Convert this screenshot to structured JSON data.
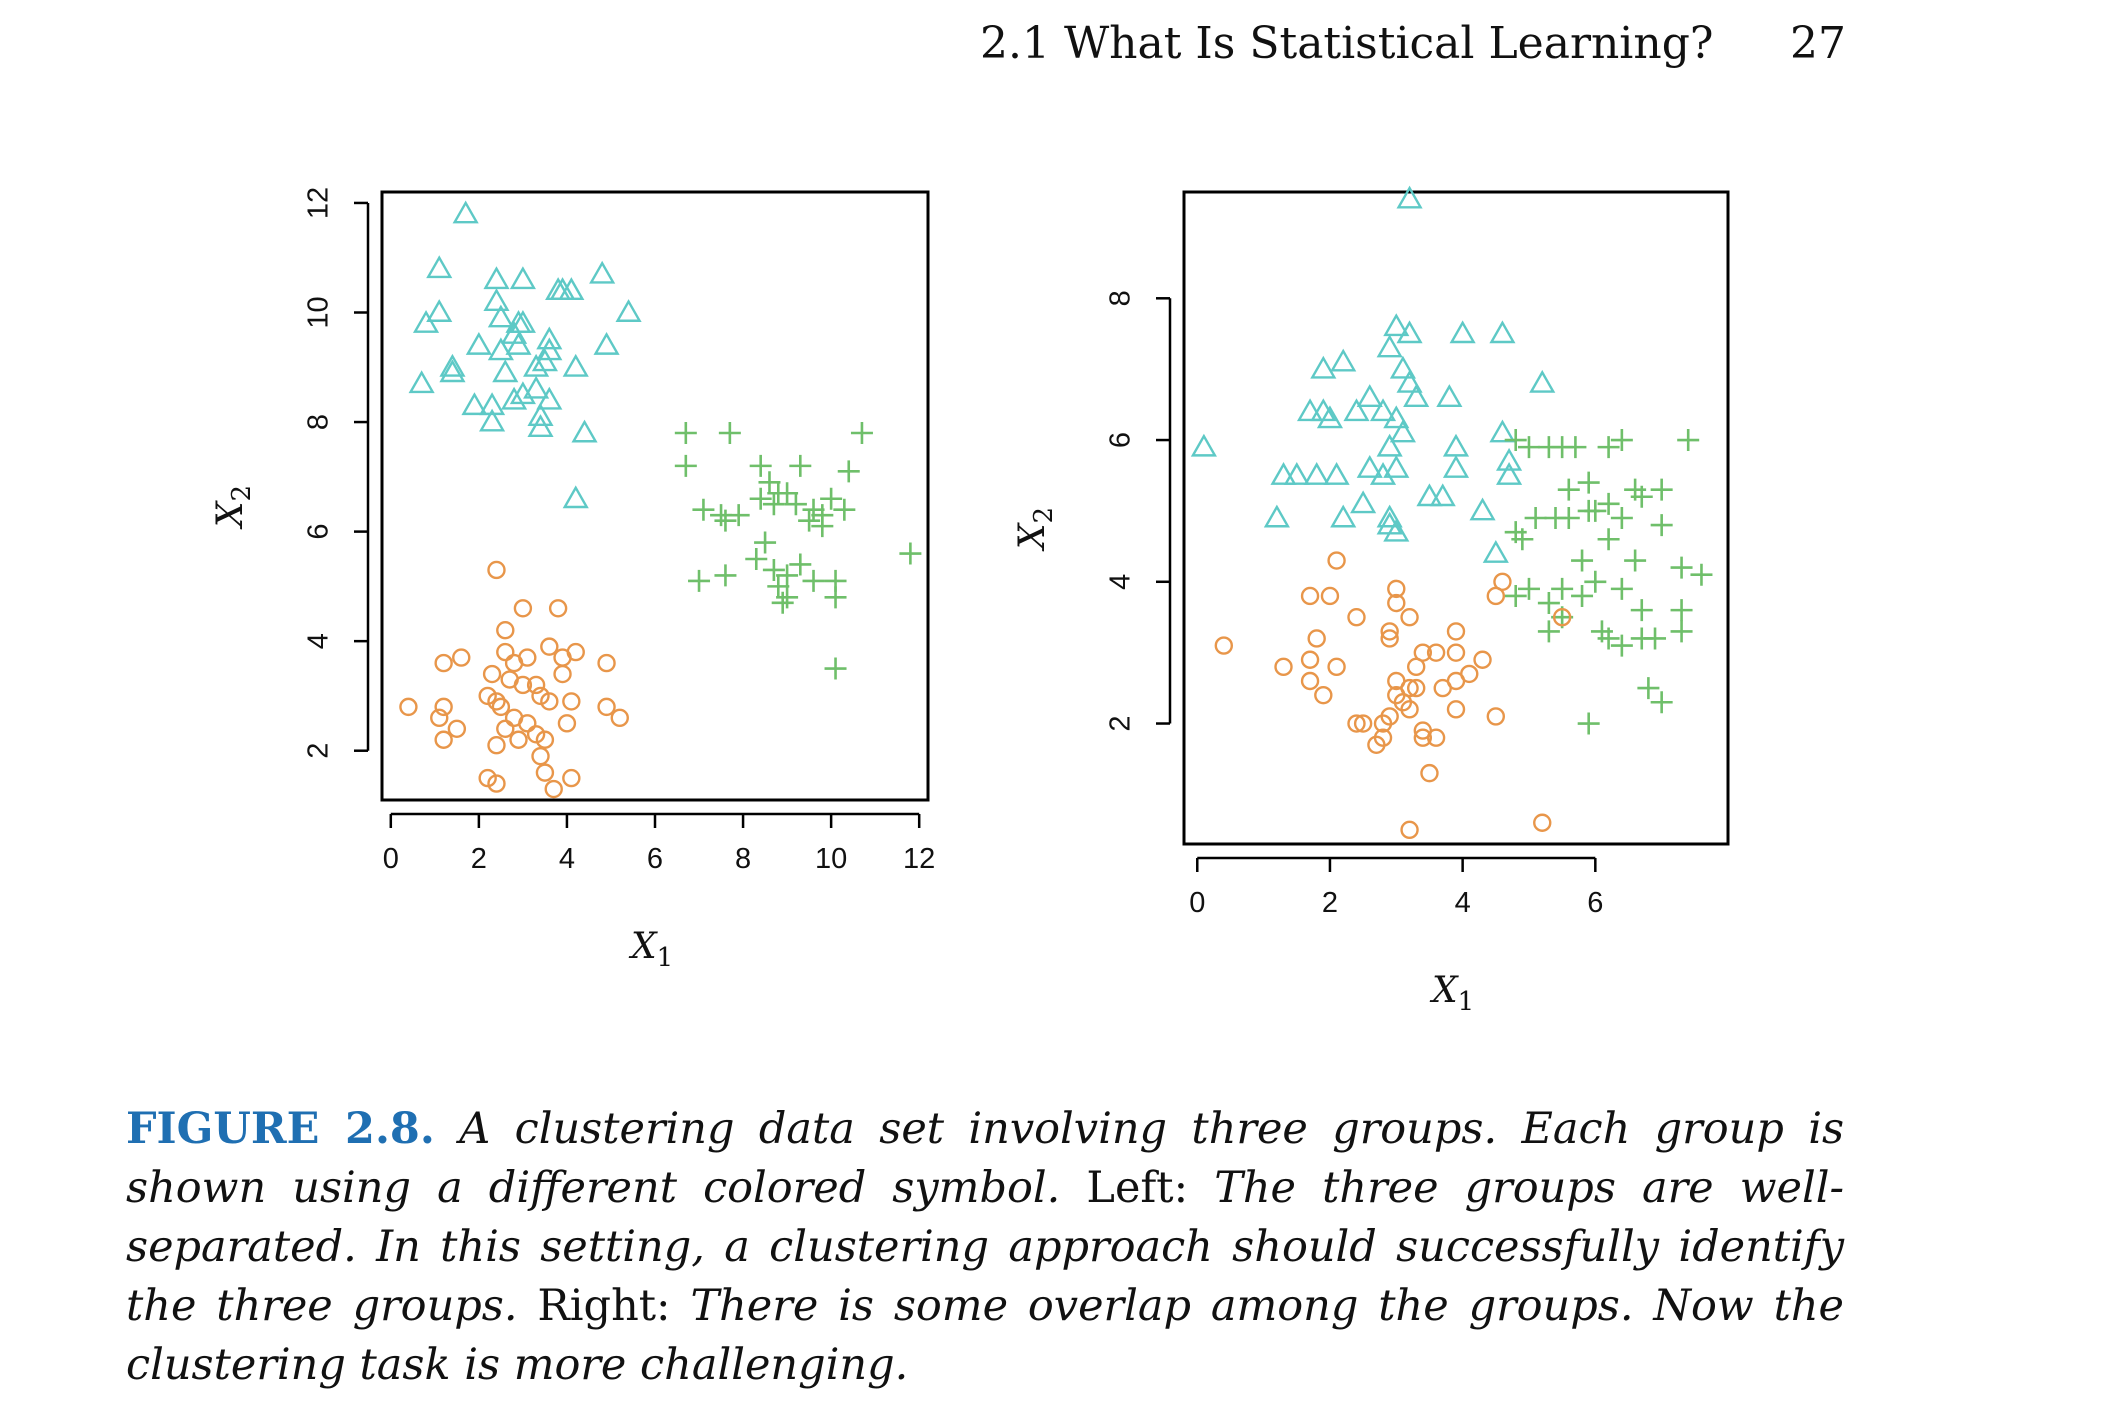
{
  "running_head": {
    "section_title": "2.1 What Is Statistical Learning?",
    "page_number": "27"
  },
  "caption": {
    "label": "FIGURE 2.8.",
    "part1": "A clustering data set involving three groups. Each group is shown using a different colored symbol.",
    "left_word": "Left:",
    "part2": "The three groups are well-separated. In this setting, a clustering approach should successfully identify the three groups.",
    "right_word": "Right:",
    "part3": "There is some overlap among the groups. Now the clustering task is more challenging."
  },
  "colors": {
    "group_triangle": "#5ec9c6",
    "group_plus": "#6fbf6a",
    "group_circle": "#e8964a",
    "axis": "#000000"
  },
  "chart_data": [
    {
      "type": "scatter",
      "panel": "left",
      "xlabel": "X1",
      "ylabel": "X2",
      "xlim": [
        -0.2,
        12.2
      ],
      "ylim": [
        1.1,
        12.2
      ],
      "xticks": [
        0,
        2,
        4,
        6,
        8,
        10,
        12
      ],
      "yticks": [
        2,
        4,
        6,
        8,
        10,
        12
      ],
      "series": [
        {
          "marker": "triangle",
          "color": "#5ec9c6",
          "points": [
            [
              1.7,
              11.8
            ],
            [
              1.1,
              10.8
            ],
            [
              1.1,
              10.0
            ],
            [
              0.8,
              9.8
            ],
            [
              0.7,
              8.7
            ],
            [
              1.4,
              9.0
            ],
            [
              1.4,
              8.9
            ],
            [
              2.0,
              9.4
            ],
            [
              2.3,
              8.3
            ],
            [
              1.9,
              8.3
            ],
            [
              2.4,
              10.6
            ],
            [
              2.4,
              10.2
            ],
            [
              2.5,
              9.9
            ],
            [
              2.5,
              9.3
            ],
            [
              2.6,
              8.9
            ],
            [
              2.3,
              8.0
            ],
            [
              2.9,
              9.8
            ],
            [
              2.8,
              9.6
            ],
            [
              3.0,
              9.8
            ],
            [
              2.9,
              9.4
            ],
            [
              3.0,
              10.6
            ],
            [
              3.0,
              8.5
            ],
            [
              2.8,
              8.4
            ],
            [
              3.3,
              9.0
            ],
            [
              3.3,
              8.6
            ],
            [
              3.6,
              9.3
            ],
            [
              3.5,
              9.1
            ],
            [
              3.4,
              8.1
            ],
            [
              3.6,
              8.4
            ],
            [
              3.4,
              7.9
            ],
            [
              3.8,
              10.4
            ],
            [
              4.1,
              10.4
            ],
            [
              3.9,
              10.4
            ],
            [
              3.6,
              9.5
            ],
            [
              4.2,
              9.0
            ],
            [
              4.4,
              7.8
            ],
            [
              4.8,
              10.7
            ],
            [
              4.9,
              9.4
            ],
            [
              5.4,
              10.0
            ],
            [
              4.2,
              6.6
            ]
          ]
        },
        {
          "marker": "plus",
          "color": "#6fbf6a",
          "points": [
            [
              6.7,
              7.8
            ],
            [
              7.7,
              7.8
            ],
            [
              6.7,
              7.2
            ],
            [
              8.4,
              7.2
            ],
            [
              9.3,
              7.2
            ],
            [
              10.4,
              7.1
            ],
            [
              10.7,
              7.8
            ],
            [
              7.1,
              6.4
            ],
            [
              7.5,
              6.3
            ],
            [
              7.9,
              6.3
            ],
            [
              8.4,
              6.6
            ],
            [
              8.6,
              6.9
            ],
            [
              8.8,
              6.7
            ],
            [
              8.7,
              6.5
            ],
            [
              9.0,
              6.7
            ],
            [
              9.2,
              6.5
            ],
            [
              9.5,
              6.2
            ],
            [
              9.6,
              6.4
            ],
            [
              9.8,
              6.3
            ],
            [
              10.0,
              6.6
            ],
            [
              10.3,
              6.4
            ],
            [
              9.8,
              6.1
            ],
            [
              7.6,
              6.2
            ],
            [
              8.5,
              5.8
            ],
            [
              8.3,
              5.5
            ],
            [
              8.7,
              5.3
            ],
            [
              9.0,
              5.2
            ],
            [
              9.3,
              5.4
            ],
            [
              9.6,
              5.1
            ],
            [
              8.8,
              5.0
            ],
            [
              9.0,
              4.8
            ],
            [
              8.9,
              4.7
            ],
            [
              10.1,
              5.1
            ],
            [
              10.1,
              4.8
            ],
            [
              7.0,
              5.1
            ],
            [
              7.6,
              5.2
            ],
            [
              11.8,
              5.6
            ],
            [
              10.1,
              3.5
            ]
          ]
        },
        {
          "marker": "circle",
          "color": "#e8964a",
          "points": [
            [
              0.4,
              2.8
            ],
            [
              1.1,
              2.6
            ],
            [
              1.2,
              2.8
            ],
            [
              1.2,
              2.2
            ],
            [
              1.5,
              2.4
            ],
            [
              1.6,
              3.7
            ],
            [
              1.2,
              3.6
            ],
            [
              2.4,
              5.3
            ],
            [
              3.0,
              4.6
            ],
            [
              3.8,
              4.6
            ],
            [
              2.6,
              4.2
            ],
            [
              2.6,
              3.8
            ],
            [
              2.8,
              3.6
            ],
            [
              3.1,
              3.7
            ],
            [
              3.6,
              3.9
            ],
            [
              3.9,
              3.7
            ],
            [
              4.2,
              3.8
            ],
            [
              3.9,
              3.4
            ],
            [
              2.3,
              3.4
            ],
            [
              2.7,
              3.3
            ],
            [
              3.0,
              3.2
            ],
            [
              3.3,
              3.2
            ],
            [
              3.4,
              3.0
            ],
            [
              2.4,
              2.9
            ],
            [
              2.2,
              3.0
            ],
            [
              2.5,
              2.8
            ],
            [
              2.8,
              2.6
            ],
            [
              3.6,
              2.9
            ],
            [
              4.1,
              2.9
            ],
            [
              4.9,
              3.6
            ],
            [
              4.9,
              2.8
            ],
            [
              5.2,
              2.6
            ],
            [
              4.0,
              2.5
            ],
            [
              2.6,
              2.4
            ],
            [
              3.1,
              2.5
            ],
            [
              3.3,
              2.3
            ],
            [
              3.5,
              2.2
            ],
            [
              2.9,
              2.2
            ],
            [
              2.4,
              2.1
            ],
            [
              3.4,
              1.9
            ],
            [
              3.5,
              1.6
            ],
            [
              2.2,
              1.5
            ],
            [
              2.4,
              1.4
            ],
            [
              3.7,
              1.3
            ],
            [
              4.1,
              1.5
            ]
          ]
        }
      ]
    },
    {
      "type": "scatter",
      "panel": "right",
      "xlabel": "X1",
      "ylabel": "X2",
      "xlim": [
        -0.2,
        8.0
      ],
      "ylim": [
        0.3,
        9.5
      ],
      "xticks": [
        0,
        2,
        4,
        6
      ],
      "yticks": [
        2,
        4,
        6,
        8
      ],
      "series": [
        {
          "marker": "triangle",
          "color": "#5ec9c6",
          "points": [
            [
              3.2,
              9.4
            ],
            [
              0.1,
              5.9
            ],
            [
              1.3,
              5.5
            ],
            [
              1.5,
              5.5
            ],
            [
              1.8,
              5.5
            ],
            [
              1.7,
              6.4
            ],
            [
              1.9,
              6.4
            ],
            [
              2.0,
              6.3
            ],
            [
              1.9,
              7.0
            ],
            [
              2.2,
              7.1
            ],
            [
              2.4,
              6.4
            ],
            [
              2.6,
              6.6
            ],
            [
              2.8,
              6.4
            ],
            [
              2.9,
              7.3
            ],
            [
              3.0,
              7.6
            ],
            [
              3.2,
              7.5
            ],
            [
              3.1,
              7.0
            ],
            [
              3.2,
              6.8
            ],
            [
              3.3,
              6.6
            ],
            [
              3.0,
              6.3
            ],
            [
              3.1,
              6.1
            ],
            [
              2.9,
              5.9
            ],
            [
              3.0,
              5.6
            ],
            [
              2.8,
              5.5
            ],
            [
              2.5,
              5.1
            ],
            [
              2.9,
              4.9
            ],
            [
              2.9,
              4.8
            ],
            [
              3.0,
              4.7
            ],
            [
              2.2,
              4.9
            ],
            [
              1.2,
              4.9
            ],
            [
              2.1,
              5.5
            ],
            [
              2.6,
              5.6
            ],
            [
              3.5,
              5.2
            ],
            [
              3.7,
              5.2
            ],
            [
              3.9,
              5.6
            ],
            [
              3.9,
              5.9
            ],
            [
              4.0,
              7.5
            ],
            [
              4.6,
              7.5
            ],
            [
              5.2,
              6.8
            ],
            [
              3.8,
              6.6
            ],
            [
              4.6,
              6.1
            ],
            [
              4.7,
              5.7
            ],
            [
              4.7,
              5.5
            ],
            [
              4.3,
              5.0
            ],
            [
              4.5,
              4.4
            ]
          ]
        },
        {
          "marker": "plus",
          "color": "#6fbf6a",
          "points": [
            [
              4.8,
              6.0
            ],
            [
              5.0,
              5.9
            ],
            [
              5.3,
              5.9
            ],
            [
              5.5,
              5.9
            ],
            [
              5.7,
              5.9
            ],
            [
              6.2,
              5.9
            ],
            [
              6.4,
              6.0
            ],
            [
              7.4,
              6.0
            ],
            [
              5.9,
              5.4
            ],
            [
              5.6,
              5.3
            ],
            [
              6.0,
              5.0
            ],
            [
              6.2,
              5.1
            ],
            [
              6.6,
              5.3
            ],
            [
              6.7,
              5.2
            ],
            [
              7.0,
              5.3
            ],
            [
              5.1,
              4.9
            ],
            [
              5.4,
              4.9
            ],
            [
              5.6,
              4.9
            ],
            [
              5.9,
              5.0
            ],
            [
              6.4,
              4.9
            ],
            [
              7.0,
              4.8
            ],
            [
              4.8,
              4.7
            ],
            [
              4.9,
              4.6
            ],
            [
              6.2,
              4.6
            ],
            [
              5.8,
              4.3
            ],
            [
              6.0,
              4.0
            ],
            [
              6.6,
              4.3
            ],
            [
              7.3,
              4.2
            ],
            [
              7.6,
              4.1
            ],
            [
              4.8,
              3.8
            ],
            [
              5.0,
              3.9
            ],
            [
              5.3,
              3.7
            ],
            [
              5.5,
              3.9
            ],
            [
              5.8,
              3.8
            ],
            [
              6.4,
              3.9
            ],
            [
              6.7,
              3.6
            ],
            [
              7.3,
              3.6
            ],
            [
              5.3,
              3.3
            ],
            [
              5.5,
              3.5
            ],
            [
              6.1,
              3.3
            ],
            [
              6.2,
              3.2
            ],
            [
              6.4,
              3.1
            ],
            [
              6.7,
              3.2
            ],
            [
              6.9,
              3.2
            ],
            [
              7.3,
              3.3
            ],
            [
              6.8,
              2.5
            ],
            [
              7.0,
              2.3
            ],
            [
              5.9,
              2.0
            ]
          ]
        },
        {
          "marker": "circle",
          "color": "#e8964a",
          "points": [
            [
              0.4,
              3.1
            ],
            [
              1.3,
              2.8
            ],
            [
              1.7,
              2.9
            ],
            [
              1.7,
              2.6
            ],
            [
              1.9,
              2.4
            ],
            [
              2.1,
              2.8
            ],
            [
              1.8,
              3.2
            ],
            [
              1.7,
              3.8
            ],
            [
              2.0,
              3.8
            ],
            [
              2.1,
              4.3
            ],
            [
              2.4,
              3.5
            ],
            [
              3.0,
              3.9
            ],
            [
              3.0,
              3.7
            ],
            [
              3.2,
              3.5
            ],
            [
              2.9,
              3.3
            ],
            [
              2.9,
              3.2
            ],
            [
              3.4,
              3.0
            ],
            [
              3.6,
              3.0
            ],
            [
              3.9,
              3.0
            ],
            [
              3.3,
              2.8
            ],
            [
              3.0,
              2.6
            ],
            [
              3.2,
              2.5
            ],
            [
              3.3,
              2.5
            ],
            [
              3.0,
              2.4
            ],
            [
              3.1,
              2.3
            ],
            [
              2.9,
              2.1
            ],
            [
              3.2,
              2.2
            ],
            [
              3.7,
              2.5
            ],
            [
              3.9,
              2.6
            ],
            [
              3.9,
              3.3
            ],
            [
              4.1,
              2.7
            ],
            [
              4.3,
              2.9
            ],
            [
              2.4,
              2.0
            ],
            [
              2.5,
              2.0
            ],
            [
              2.8,
              2.0
            ],
            [
              2.8,
              1.8
            ],
            [
              2.7,
              1.7
            ],
            [
              3.4,
              1.9
            ],
            [
              3.4,
              1.8
            ],
            [
              3.6,
              1.8
            ],
            [
              3.5,
              1.3
            ],
            [
              3.2,
              0.5
            ],
            [
              3.9,
              2.2
            ],
            [
              4.5,
              2.1
            ],
            [
              4.5,
              3.8
            ],
            [
              4.6,
              4.0
            ],
            [
              5.5,
              3.5
            ],
            [
              5.2,
              0.6
            ]
          ]
        }
      ]
    }
  ]
}
